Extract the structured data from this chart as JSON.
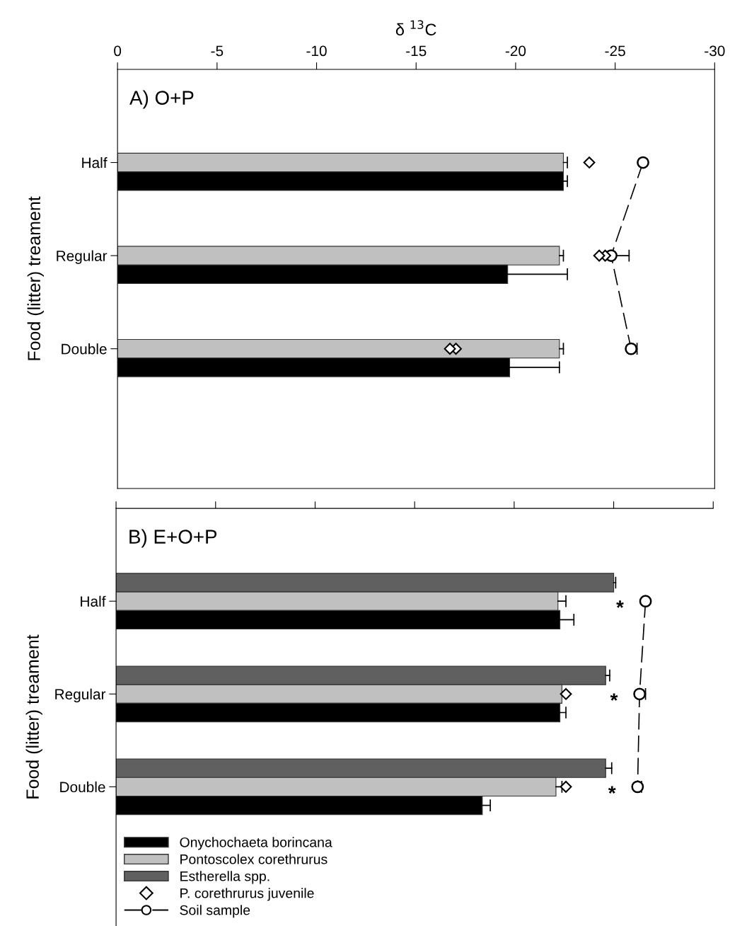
{
  "chart_data": [
    {
      "type": "bar",
      "orientation": "horizontal",
      "title": "A) O+P",
      "xlabel": "δ $^{13}$C",
      "ylabel": "Food (litter) treament",
      "categories": [
        "Half",
        "Regular",
        "Double"
      ],
      "xlim": [
        0,
        -30
      ],
      "xticks": [
        0,
        -5,
        -10,
        -15,
        -20,
        -25,
        -30
      ],
      "series": [
        {
          "color": "#c0c0c0",
          "values": [
            -22.4,
            -22.2,
            -22.2
          ],
          "errors": [
            [
              -22.6,
              -22.4
            ],
            [
              -22.4,
              -22.2
            ],
            [
              -22.4,
              -22.2
            ]
          ]
        },
        {
          "color": "#000000",
          "values": [
            -22.4,
            -19.6,
            -19.7
          ],
          "errors": [
            [
              -22.6,
              -22.4
            ],
            [
              -22.6,
              -19.6
            ],
            [
              -22.2,
              -19.7
            ]
          ]
        },
        {
          "type": "scatter",
          "marker": "diamond",
          "color": "#ffffff",
          "values": [
            -23.7,
            -24.2,
            -16.7
          ]
        },
        {
          "type": "scatter",
          "marker": "diamond",
          "color": "#ffffff",
          "values": [
            null,
            -24.5,
            -17.0
          ]
        },
        {
          "type": "line",
          "marker": "circle",
          "line_style": "dashed",
          "color": "#000000",
          "values": [
            -26.4,
            -24.8,
            -25.8
          ],
          "errors": [
            null,
            [
              -25.7,
              -24.8
            ],
            [
              -26.1,
              -25.8
            ]
          ]
        }
      ]
    },
    {
      "type": "bar",
      "orientation": "horizontal",
      "title": "B) E+O+P",
      "ylabel": "Food (litter) treament",
      "categories": [
        "Half",
        "Regular",
        "Double"
      ],
      "xlim": [
        0,
        -30
      ],
      "xticks": [
        0,
        -5,
        -10,
        -15,
        -20,
        -25,
        -30
      ],
      "tick_labels": false,
      "legend": "bottom left",
      "series": [
        {
          "name": "Estherella spp.",
          "color": "#606060",
          "values": [
            -25.0,
            -24.6,
            -24.6
          ],
          "errors": [
            [
              -25.1,
              -25.0
            ],
            [
              -24.8,
              -24.6
            ],
            [
              -24.9,
              -24.6
            ]
          ]
        },
        {
          "name": "Pontoscolex corethrurus",
          "color": "#c0c0c0",
          "values": [
            -22.2,
            -22.4,
            -22.1
          ],
          "errors": [
            [
              -22.6,
              -22.2
            ],
            null,
            [
              -22.4,
              -22.1
            ]
          ]
        },
        {
          "name": "Onychochaeta borincana",
          "color": "#000000",
          "values": [
            -22.3,
            -22.3,
            -18.4
          ],
          "errors": [
            [
              -23.0,
              -22.3
            ],
            [
              -22.6,
              -22.3
            ],
            [
              -18.8,
              -18.4
            ]
          ]
        },
        {
          "name": "P. corethrurus juvenile",
          "type": "scatter",
          "marker": "diamond",
          "color": "#ffffff",
          "values": [
            null,
            -22.6,
            -22.6
          ]
        },
        {
          "name": "Soil sample",
          "type": "line",
          "marker": "circle",
          "line_style": "dashed",
          "color": "#000000",
          "values": [
            -26.6,
            -26.3,
            -26.2
          ],
          "errors": [
            null,
            [
              -26.6,
              -26.3
            ],
            [
              -26.4,
              -26.2
            ]
          ]
        }
      ],
      "annotations": [
        "*",
        "*",
        "*"
      ]
    }
  ]
}
